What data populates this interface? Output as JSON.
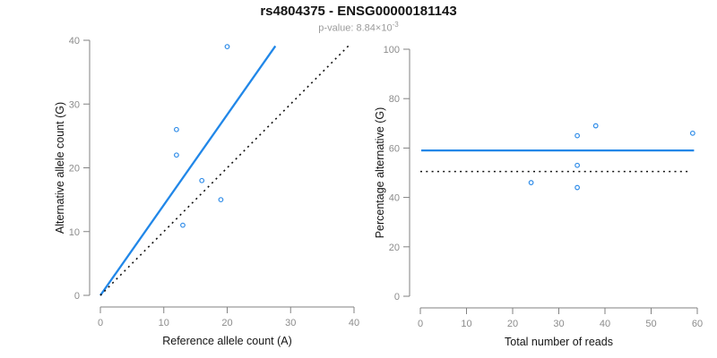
{
  "header": {
    "title": "rs4804375 - ENSG00000181143",
    "subtitle_prefix": "p-value: 8.84×10",
    "subtitle_exponent": "-3"
  },
  "colors": {
    "blue": "#2187e8",
    "point": "#2f8ce8",
    "dotted": "#111111",
    "axis": "#828282",
    "tick_label": "#8c8c8c",
    "axis_title": "#141414",
    "title": "#141414",
    "subtitle": "#9b9b9b"
  },
  "chart_data": [
    {
      "type": "scatter",
      "panel": "left",
      "xlabel": "Reference allele count (A)",
      "ylabel": "Alternative allele count (G)",
      "xlim": [
        0,
        40
      ],
      "ylim": [
        0,
        40
      ],
      "xticks": [
        0,
        10,
        20,
        30,
        40
      ],
      "yticks": [
        0,
        10,
        20,
        30,
        40
      ],
      "grid": false,
      "points": [
        [
          20,
          39
        ],
        [
          12,
          26
        ],
        [
          12,
          22
        ],
        [
          16,
          18
        ],
        [
          19,
          15
        ],
        [
          13,
          11
        ]
      ],
      "lines": [
        {
          "name": "fit-line",
          "style": "solid",
          "x1": 0,
          "y1": 0,
          "x2": 27.6,
          "y2": 39.1
        },
        {
          "name": "identity-line",
          "style": "dotted",
          "x1": 0,
          "y1": 0,
          "x2": 39.2,
          "y2": 39.2
        }
      ]
    },
    {
      "type": "scatter",
      "panel": "right",
      "xlabel": "Total number of reads",
      "ylabel": "Percentage alternative (G)",
      "xlim": [
        0,
        60
      ],
      "ylim": [
        0,
        100
      ],
      "xticks": [
        0,
        10,
        20,
        30,
        40,
        50,
        60
      ],
      "yticks": [
        0,
        20,
        40,
        60,
        80,
        100
      ],
      "grid": false,
      "points": [
        [
          24,
          46
        ],
        [
          34,
          44
        ],
        [
          34,
          53
        ],
        [
          34,
          65
        ],
        [
          38,
          69
        ],
        [
          59,
          66
        ]
      ],
      "lines": [
        {
          "name": "mean-line",
          "style": "solid",
          "x1": 0.2,
          "y1": 59,
          "x2": 59.3,
          "y2": 59
        },
        {
          "name": "expected-line",
          "style": "dotted",
          "x1": 0,
          "y1": 50.5,
          "x2": 58.5,
          "y2": 50.5
        }
      ]
    }
  ]
}
